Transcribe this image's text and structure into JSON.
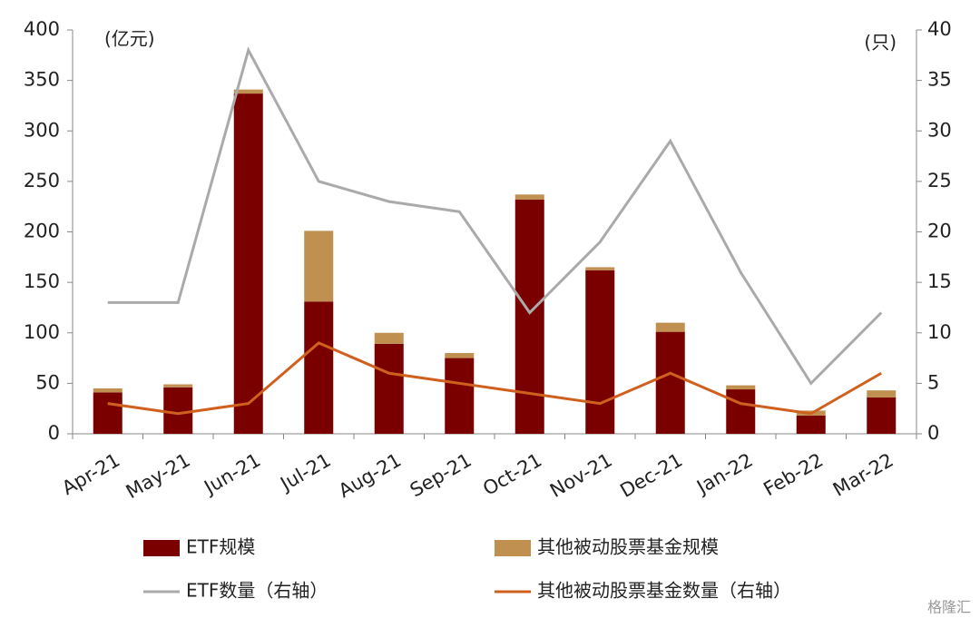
{
  "chart_data": {
    "type": "bar",
    "y_label": "(亿元)",
    "y2_label": "(只)",
    "categories": [
      "Apr-21",
      "May-21",
      "Jun-21",
      "Jul-21",
      "Aug-21",
      "Sep-21",
      "Oct-21",
      "Nov-21",
      "Dec-21",
      "Jan-22",
      "Feb-22",
      "Mar-22"
    ],
    "series": [
      {
        "name": "ETF规模",
        "type": "bar",
        "color": "#7a0000",
        "values": [
          41,
          46,
          337,
          131,
          89,
          75,
          232,
          162,
          101,
          44,
          18,
          36
        ]
      },
      {
        "name": "其他被动股票基金规模",
        "type": "bar",
        "color": "#c09050",
        "values": [
          4,
          3,
          4,
          70,
          11,
          5,
          5,
          3,
          9,
          4,
          5,
          7
        ]
      },
      {
        "name": "ETF数量（右轴）",
        "type": "line",
        "axis": "y2",
        "color": "#aaaaaa",
        "values": [
          13,
          13,
          38,
          25,
          23,
          22,
          12,
          19,
          29,
          16,
          5,
          12
        ]
      },
      {
        "name": "其他被动股票基金数量（右轴）",
        "type": "line",
        "axis": "y2",
        "color": "#d0601e",
        "values": [
          3,
          2,
          3,
          9,
          6,
          5,
          4,
          3,
          6,
          3,
          2,
          6
        ]
      }
    ],
    "ylim": [
      0,
      400
    ],
    "yticks": [
      0,
      50,
      100,
      150,
      200,
      250,
      300,
      350,
      400
    ],
    "y2lim": [
      0,
      40
    ],
    "y2ticks": [
      0,
      5,
      10,
      15,
      20,
      25,
      30,
      35,
      40
    ],
    "stacked": true
  },
  "watermark": "格隆汇"
}
